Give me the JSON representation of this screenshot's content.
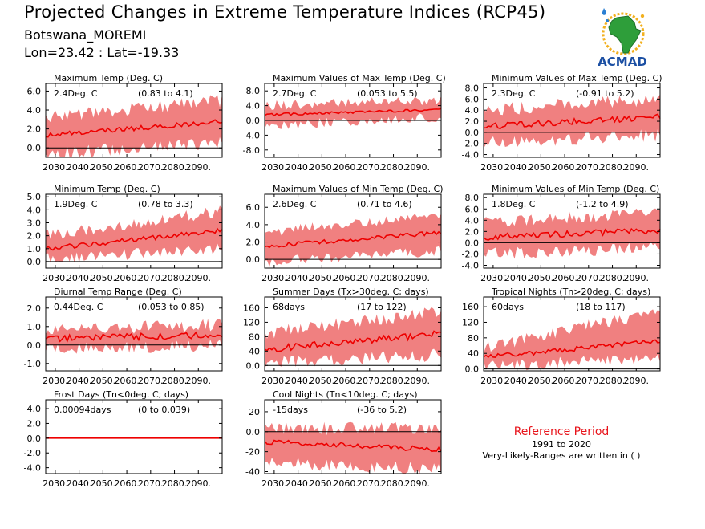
{
  "header": {
    "title": "Projected Changes in Extreme Temperature Indices (RCP45)",
    "subtitle": "Botswana_MOREMI",
    "coords": "Lon=23.42 : Lat=-19.33"
  },
  "logo": {
    "text": "ACMAD",
    "icon": "acmad-africa-logo"
  },
  "reference": {
    "title": "Reference Period",
    "years": "1991 to 2020",
    "note": "Very-Likely-Ranges are written in ( )"
  },
  "colors": {
    "band": "#f08080",
    "line": "#ee0000",
    "zero": "#000000"
  },
  "chart_data": [
    {
      "type": "area",
      "title": "Maximum Temp (Deg. C)",
      "stat": "2.4Deg. C",
      "range": "(0.83 to 4.1)",
      "x_ticks": [
        "2030.",
        "2040.",
        "2050.",
        "2060.",
        "2070.",
        "2080.",
        "2090."
      ],
      "y_ticks": [
        6.0,
        4.0,
        2.0,
        0.0
      ],
      "ylim": [
        -1.0,
        6.8
      ],
      "x_range": [
        2026,
        2100
      ],
      "median": {
        "start": 1.3,
        "end": 2.8,
        "noise": 0.25
      },
      "band": {
        "low_start": -0.6,
        "low_end": 0.5,
        "high_start": 3.2,
        "high_end": 5.0,
        "noise": 0.7
      }
    },
    {
      "type": "area",
      "title": "Maximum Values of Max Temp (Deg. C)",
      "stat": "2.7Deg. C",
      "range": "(0.053 to 5.5)",
      "x_ticks": [
        "2030.",
        "2040.",
        "2050.",
        "2060.",
        "2070.",
        "2080.",
        "2090."
      ],
      "y_ticks": [
        8.0,
        4.0,
        0.0,
        -4.0,
        -8.0
      ],
      "ylim": [
        -10.0,
        10.0
      ],
      "x_range": [
        2026,
        2100
      ],
      "median": {
        "start": 1.5,
        "end": 3.0,
        "noise": 0.35
      },
      "band": {
        "low_start": -1.5,
        "low_end": 0.8,
        "high_start": 4.0,
        "high_end": 5.5,
        "noise": 1.4
      }
    },
    {
      "type": "area",
      "title": "Minimum Values of Max Temp (Deg. C)",
      "stat": "2.3Deg. C",
      "range": "(-0.91 to 5.2)",
      "x_ticks": [
        "2030.",
        "2040.",
        "2050.",
        "2060.",
        "2070.",
        "2080.",
        "2090."
      ],
      "y_ticks": [
        8.0,
        6.0,
        4.0,
        2.0,
        0.0,
        -2.0,
        -4.0
      ],
      "ylim": [
        -4.5,
        8.8
      ],
      "x_range": [
        2026,
        2100
      ],
      "median": {
        "start": 1.0,
        "end": 2.8,
        "noise": 0.55
      },
      "band": {
        "low_start": -1.8,
        "low_end": -0.5,
        "high_start": 4.0,
        "high_end": 6.0,
        "noise": 1.2
      }
    },
    {
      "type": "area",
      "title": "Minimum Temp (Deg. C)",
      "stat": "1.9Deg. C",
      "range": "(0.78 to 3.3)",
      "x_ticks": [
        "2030.",
        "2040.",
        "2050.",
        "2060.",
        "2070.",
        "2080.",
        "2090."
      ],
      "y_ticks": [
        5.0,
        4.0,
        3.0,
        2.0,
        1.0,
        0.0
      ],
      "ylim": [
        -0.5,
        5.2
      ],
      "x_range": [
        2026,
        2100
      ],
      "median": {
        "start": 1.0,
        "end": 2.4,
        "noise": 0.18
      },
      "band": {
        "low_start": 0.2,
        "low_end": 1.0,
        "high_start": 2.0,
        "high_end": 3.9,
        "noise": 0.45
      }
    },
    {
      "type": "area",
      "title": "Maximum Values of Min Temp (Deg. C)",
      "stat": "2.6Deg. C",
      "range": "(0.71 to 4.6)",
      "x_ticks": [
        "2030.",
        "2040.",
        "2050.",
        "2060.",
        "2070.",
        "2080.",
        "2090."
      ],
      "y_ticks": [
        6.0,
        4.0,
        2.0,
        0.0
      ],
      "ylim": [
        -1.0,
        7.5
      ],
      "x_range": [
        2026,
        2100
      ],
      "median": {
        "start": 1.5,
        "end": 3.1,
        "noise": 0.25
      },
      "band": {
        "low_start": -0.3,
        "low_end": 1.0,
        "high_start": 3.2,
        "high_end": 5.0,
        "noise": 0.6
      }
    },
    {
      "type": "area",
      "title": "Minimum Values of Min Temp (Deg. C)",
      "stat": "1.8Deg. C",
      "range": "(-1.2 to 4.9)",
      "x_ticks": [
        "2030.",
        "2040.",
        "2050.",
        "2060.",
        "2070.",
        "2080.",
        "2090."
      ],
      "y_ticks": [
        8.0,
        6.0,
        4.0,
        2.0,
        0.0,
        -2.0,
        -4.0
      ],
      "ylim": [
        -4.5,
        8.6
      ],
      "x_range": [
        2026,
        2100
      ],
      "median": {
        "start": 1.0,
        "end": 2.2,
        "noise": 0.55
      },
      "band": {
        "low_start": -2.0,
        "low_end": -0.8,
        "high_start": 3.5,
        "high_end": 5.5,
        "noise": 1.1
      }
    },
    {
      "type": "area",
      "title": "Diurnal Temp Range (Deg. C)",
      "stat": "0.44Deg. C",
      "range": "(0.053 to 0.85)",
      "x_ticks": [
        "2030.",
        "2040.",
        "2050.",
        "2060.",
        "2070.",
        "2080.",
        "2090."
      ],
      "y_ticks": [
        2.0,
        1.0,
        0.0,
        -1.0
      ],
      "ylim": [
        -1.4,
        2.6
      ],
      "x_range": [
        2026,
        2100
      ],
      "median": {
        "start": 0.35,
        "end": 0.55,
        "noise": 0.18
      },
      "band": {
        "low_start": -0.2,
        "low_end": 0.0,
        "high_start": 0.8,
        "high_end": 1.1,
        "noise": 0.35
      }
    },
    {
      "type": "area",
      "title": "Summer Days (Tx>30deg. C; days)",
      "stat": "68days",
      "range": "(17 to 122)",
      "x_ticks": [
        "2030.",
        "2040.",
        "2050.",
        "2060.",
        "2070.",
        "2080.",
        "2090."
      ],
      "y_ticks": [
        160,
        120,
        80,
        40,
        0
      ],
      "ylim": [
        -15,
        190
      ],
      "x_range": [
        2026,
        2100
      ],
      "median": {
        "start": 45,
        "end": 88,
        "noise": 9
      },
      "band": {
        "low_start": 5,
        "low_end": 30,
        "high_start": 90,
        "high_end": 150,
        "noise": 18
      }
    },
    {
      "type": "area",
      "title": "Tropical Nights (Tn>20deg. C; days)",
      "stat": "60days",
      "range": "(18 to 117)",
      "x_ticks": [
        "2030.",
        "2040.",
        "2050.",
        "2060.",
        "2070.",
        "2080.",
        "2090."
      ],
      "y_ticks": [
        160,
        120,
        80,
        40,
        0
      ],
      "ylim": [
        -5,
        185
      ],
      "x_range": [
        2026,
        2100
      ],
      "median": {
        "start": 30,
        "end": 72,
        "noise": 6
      },
      "band": {
        "low_start": 8,
        "low_end": 25,
        "high_start": 55,
        "high_end": 150,
        "noise": 16
      }
    },
    {
      "type": "area",
      "title": "Frost Days (Tn<0deg. C; days)",
      "stat": "0.00094days",
      "range": "(0 to 0.039)",
      "x_ticks": [
        "2030.",
        "2040.",
        "2050.",
        "2060.",
        "2070.",
        "2080.",
        "2090."
      ],
      "y_ticks": [
        4.0,
        2.0,
        0.0,
        -2.0,
        -4.0
      ],
      "ylim": [
        -4.8,
        5.2
      ],
      "x_range": [
        2026,
        2100
      ],
      "median": {
        "start": 0.0,
        "end": 0.0,
        "noise": 0.0
      },
      "band": {
        "low_start": 0.0,
        "low_end": 0.0,
        "high_start": 0.04,
        "high_end": 0.04,
        "noise": 0.0
      }
    },
    {
      "type": "area",
      "title": "Cool Nights (Tn<10deg. C; days)",
      "stat": "-15days",
      "range": "(-36 to 5.2)",
      "x_ticks": [
        "2030.",
        "2040.",
        "2050.",
        "2060.",
        "2070.",
        "2080.",
        "2090."
      ],
      "y_ticks": [
        20,
        0,
        -20,
        -40
      ],
      "ylim": [
        -42,
        32
      ],
      "x_range": [
        2026,
        2100
      ],
      "median": {
        "start": -10,
        "end": -18,
        "noise": 2.5
      },
      "band": {
        "low_start": -30,
        "low_end": -38,
        "high_start": 3,
        "high_end": 4,
        "noise": 7
      }
    }
  ]
}
